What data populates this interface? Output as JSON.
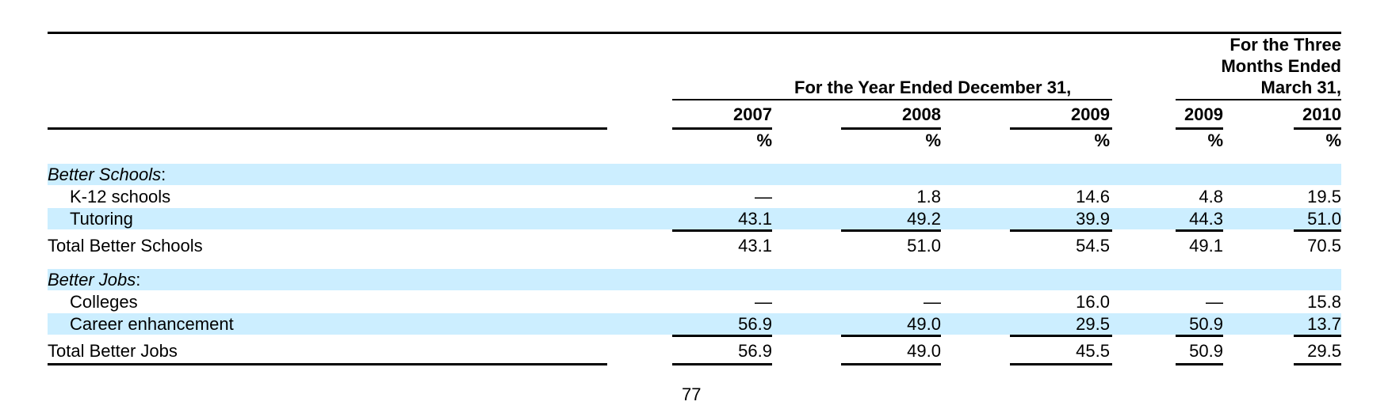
{
  "header": {
    "year_group": "For the Year Ended December 31,",
    "quarter_group": [
      "For the Three",
      "Months Ended",
      "March 31,"
    ],
    "columns": [
      "2007",
      "2008",
      "2009",
      "2009",
      "2010"
    ],
    "unit": "%"
  },
  "rows": [
    {
      "label": "Better Schools",
      "label_suffix": ":",
      "values": [
        "",
        "",
        "",
        "",
        ""
      ]
    },
    {
      "label": "K-12 schools",
      "values": [
        "—",
        "1.8",
        "14.6",
        "4.8",
        "19.5"
      ]
    },
    {
      "label": "Tutoring",
      "values": [
        "43.1",
        "49.2",
        "39.9",
        "44.3",
        "51.0"
      ]
    },
    {
      "label": "Total Better Schools",
      "values": [
        "43.1",
        "51.0",
        "54.5",
        "49.1",
        "70.5"
      ]
    },
    {
      "label": "Better Jobs",
      "label_suffix": ":",
      "values": [
        "",
        "",
        "",
        "",
        ""
      ]
    },
    {
      "label": "Colleges",
      "values": [
        "—",
        "—",
        "16.0",
        "—",
        "15.8"
      ]
    },
    {
      "label": "Career enhancement",
      "values": [
        "56.9",
        "49.0",
        "29.5",
        "50.9",
        "13.7"
      ]
    },
    {
      "label": "Total Better Jobs",
      "values": [
        "56.9",
        "49.0",
        "45.5",
        "50.9",
        "29.5"
      ]
    }
  ],
  "page_number": "77",
  "colors": {
    "row_band": "#cceeff",
    "rule": "#000000"
  }
}
